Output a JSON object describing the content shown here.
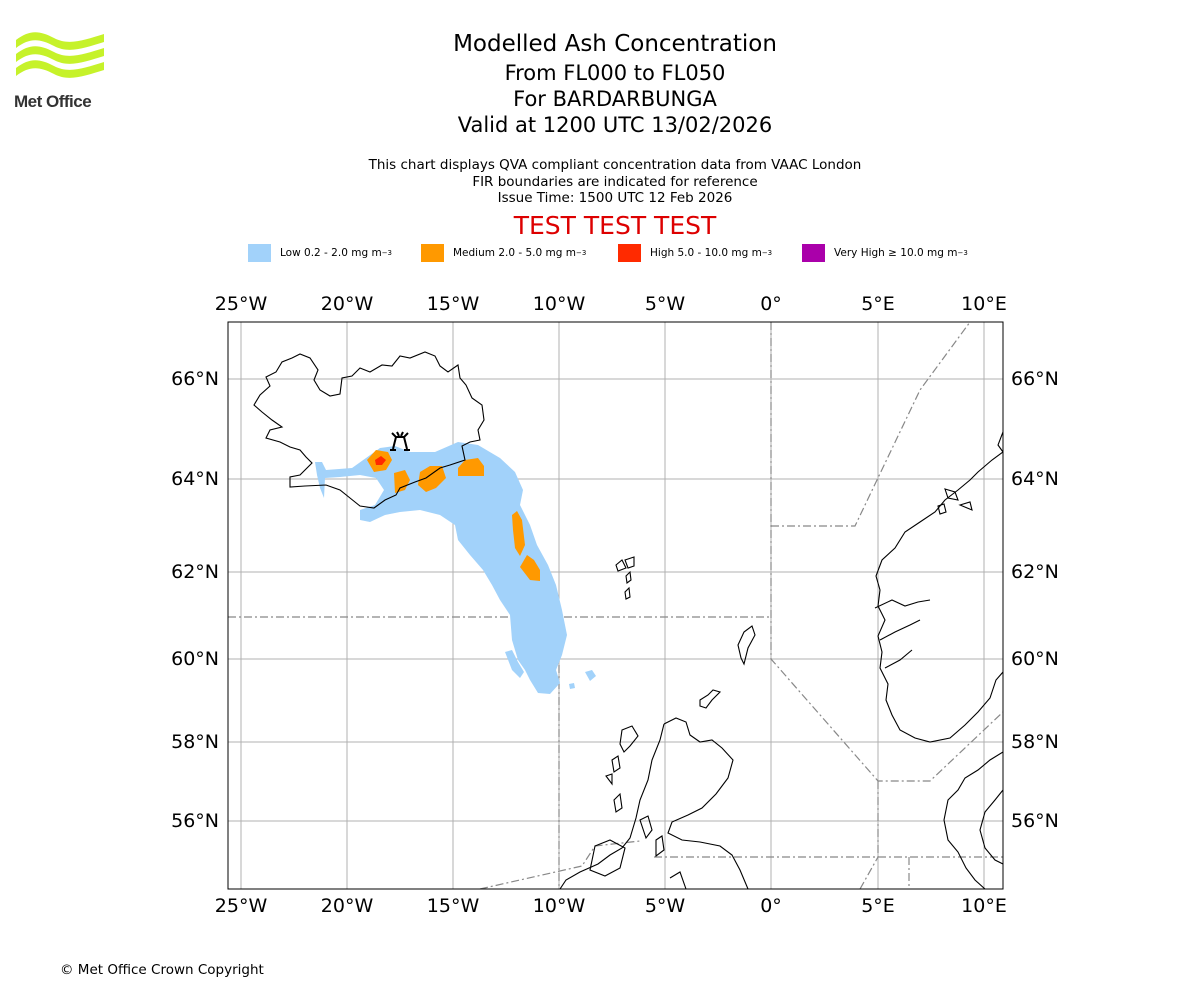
{
  "logo": {
    "text": "Met Office",
    "color": "#c6f22a"
  },
  "titles": {
    "line1": "Modelled Ash Concentration",
    "line2": "From FL000 to FL050",
    "line3": "For BARDARBUNGA",
    "line4": "Valid at 1200 UTC 13/02/2026"
  },
  "subtitle": {
    "line1": "This chart displays QVA compliant concentration data from VAAC London",
    "line2": "FIR boundaries are indicated for reference",
    "line3": "Issue Time: 1500 UTC 12 Feb 2026"
  },
  "test_banner": "TEST TEST TEST",
  "legend": [
    {
      "label": "Low 0.2 - 2.0 mg m",
      "exp": "−3",
      "color": "#a2d2fa"
    },
    {
      "label": "Medium 2.0 - 5.0 mg m",
      "exp": "−3",
      "color": "#ff9900"
    },
    {
      "label": "High 5.0 - 10.0 mg m",
      "exp": "−3",
      "color": "#ff2a00"
    },
    {
      "label": "Very High  ≥  10.0 mg m",
      "exp": "−3",
      "color": "#aa00aa"
    }
  ],
  "map": {
    "lon_ticks": [
      "25°W",
      "20°W",
      "15°W",
      "10°W",
      "5°W",
      "0°",
      "5°E",
      "10°E"
    ],
    "lat_ticks": [
      "66°N",
      "64°N",
      "62°N",
      "60°N",
      "58°N",
      "56°N"
    ],
    "volcano_icon": "volcano-icon"
  },
  "footer": "© Met Office Crown Copyright"
}
